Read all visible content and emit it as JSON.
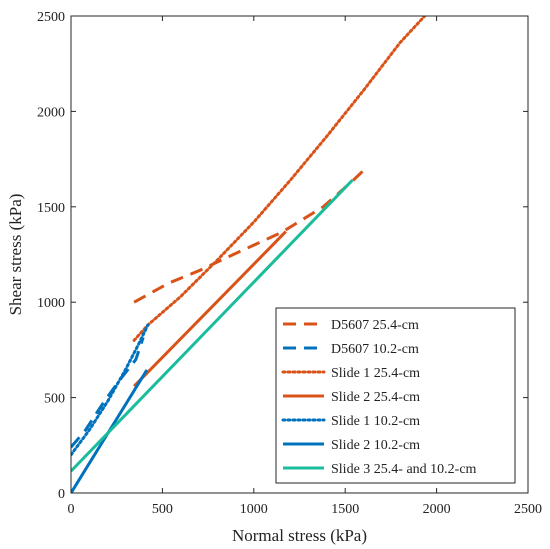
{
  "chart_data": {
    "type": "line",
    "title": "",
    "xlabel": "Normal stress (kPa)",
    "ylabel": "Shear stress (kPa)",
    "xlim": [
      0,
      2500
    ],
    "ylim": [
      0,
      2500
    ],
    "xticks": [
      "0",
      "500",
      "1000",
      "1500",
      "2000",
      "2500"
    ],
    "yticks": [
      "0",
      "500",
      "1000",
      "1500",
      "2000",
      "2500"
    ],
    "grid": false,
    "legend_position": "bottom-right",
    "series": [
      {
        "name": "D5607 25.4-cm",
        "color": "#d95319",
        "dash": "dashed",
        "x": [
          345,
          535,
          700,
          900,
          1150,
          1380,
          1545,
          1600
        ],
        "y": [
          1000,
          1100,
          1165,
          1255,
          1365,
          1500,
          1640,
          1690
        ]
      },
      {
        "name": "D5607 10.2-cm",
        "color": "#0072bd",
        "dash": "dashed",
        "x": [
          0,
          80,
          175,
          265,
          355,
          395
        ],
        "y": [
          240,
          330,
          470,
          590,
          700,
          815
        ]
      },
      {
        "name": "Slide 1 25.4-cm",
        "color": "#d95319",
        "dash": "dotted",
        "x": [
          345,
          420,
          600,
          800,
          1000,
          1200,
          1400,
          1600,
          1800,
          1935
        ],
        "y": [
          800,
          880,
          1030,
          1220,
          1420,
          1640,
          1870,
          2110,
          2360,
          2500
        ]
      },
      {
        "name": "Slide 2 25.4-cm",
        "color": "#d95319",
        "dash": "solid",
        "x": [
          345,
          1175
        ],
        "y": [
          560,
          1370
        ]
      },
      {
        "name": "Slide 1 10.2-cm",
        "color": "#0072bd",
        "dash": "dotted",
        "x": [
          0,
          100,
          200,
          300,
          370,
          420
        ],
        "y": [
          200,
          330,
          480,
          650,
          780,
          880
        ]
      },
      {
        "name": "Slide 2 10.2-cm",
        "color": "#0072bd",
        "dash": "solid",
        "x": [
          0,
          415
        ],
        "y": [
          0,
          645
        ]
      },
      {
        "name": "Slide 3 25.4- and 10.2-cm",
        "color": "#1abc9c",
        "dash": "solid",
        "x": [
          0,
          1540
        ],
        "y": [
          115,
          1640
        ]
      }
    ]
  }
}
